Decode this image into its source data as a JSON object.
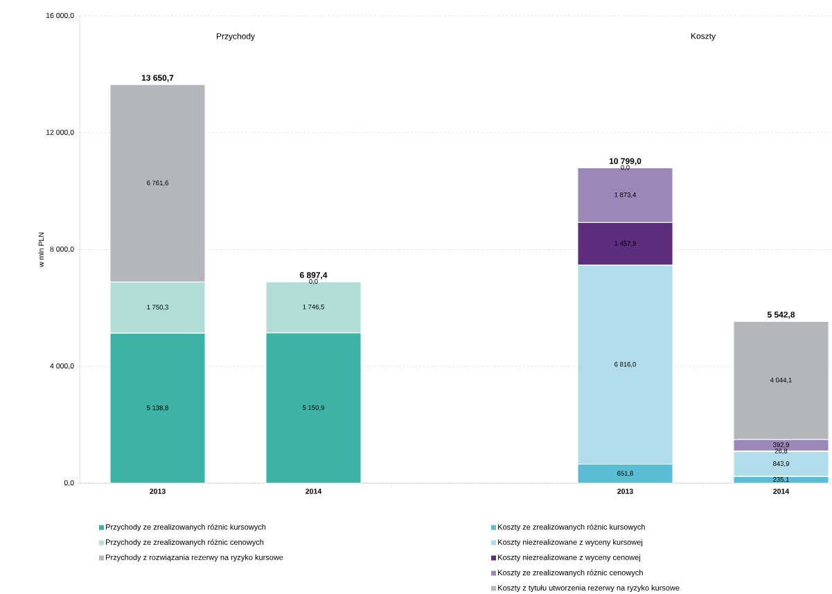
{
  "chart_data": {
    "type": "bar",
    "stacked": true,
    "ylabel": "w mln PLN",
    "categories": [
      "2013",
      "2014",
      null,
      "2013",
      "2014"
    ],
    "series": [
      {
        "name": "Przychody ze zrealizowanych różnic kursowych",
        "color": "#3db3a5",
        "values": [
          5138.8,
          5150.9,
          null,
          null,
          null
        ],
        "value_labels": [
          "5 138,8",
          "5 150,9",
          null,
          null,
          null
        ]
      },
      {
        "name": "Przychody ze zrealizowanych różnic cenowych",
        "color": "#b1ddd6",
        "values": [
          1750.3,
          1746.5,
          null,
          null,
          null
        ],
        "value_labels": [
          "1 750,3",
          "1 746,5",
          null,
          null,
          null
        ]
      },
      {
        "name": "Przychody z rozwiązania rezerwy na ryzyko kursowe",
        "color": "#b3b7bb",
        "values": [
          6761.6,
          0.0,
          null,
          null,
          null
        ],
        "value_labels": [
          "6 761,6",
          "0,0",
          null,
          null,
          null
        ]
      },
      {
        "name": "Koszty ze zrealizowanych różnic kursowych",
        "color": "#5bbdd3",
        "values": [
          null,
          null,
          null,
          651.8,
          235.1
        ],
        "value_labels": [
          null,
          null,
          null,
          "651,8",
          "235,1"
        ]
      },
      {
        "name": "Koszty niezrealizowane z wyceny kursowej",
        "color": "#b1dce9",
        "values": [
          null,
          null,
          null,
          6816.0,
          843.9
        ],
        "value_labels": [
          null,
          null,
          null,
          "6 816,0",
          "843,9"
        ]
      },
      {
        "name": "Koszty niezrealizowane z wyceny cenowej",
        "color": "#5c2d7c",
        "values": [
          null,
          null,
          null,
          1457.9,
          26.8
        ],
        "value_labels": [
          null,
          null,
          null,
          "1 457,9",
          "26,8"
        ]
      },
      {
        "name": "Koszty ze zrealizowanych różnic cenowych",
        "color": "#9c87b9",
        "values": [
          null,
          null,
          null,
          1873.4,
          392.9
        ],
        "value_labels": [
          null,
          null,
          null,
          "1 873,4",
          "392,9"
        ]
      },
      {
        "name": "Koszty z tytułu utworzenia rezerwy na ryzyko kursowe",
        "color": "#b3b7bb",
        "values": [
          null,
          null,
          null,
          0.0,
          4044.1
        ],
        "value_labels": [
          null,
          null,
          null,
          "0,0",
          "4 044,1"
        ]
      }
    ],
    "totals": [
      "13 650,7",
      "6 897,4",
      null,
      "10 799,0",
      "5 542,8"
    ],
    "annotations": [
      "Przychody",
      "Koszty"
    ],
    "ylim": [
      0,
      16000
    ],
    "yticks": [
      {
        "value": 0,
        "label": "0,0"
      },
      {
        "value": 4000,
        "label": "4 000,0"
      },
      {
        "value": 8000,
        "label": "8 000,0"
      },
      {
        "value": 12000,
        "label": "12 000,0"
      },
      {
        "value": 16000,
        "label": "16 000,0"
      }
    ],
    "grid": "y",
    "legend": "bottom"
  }
}
